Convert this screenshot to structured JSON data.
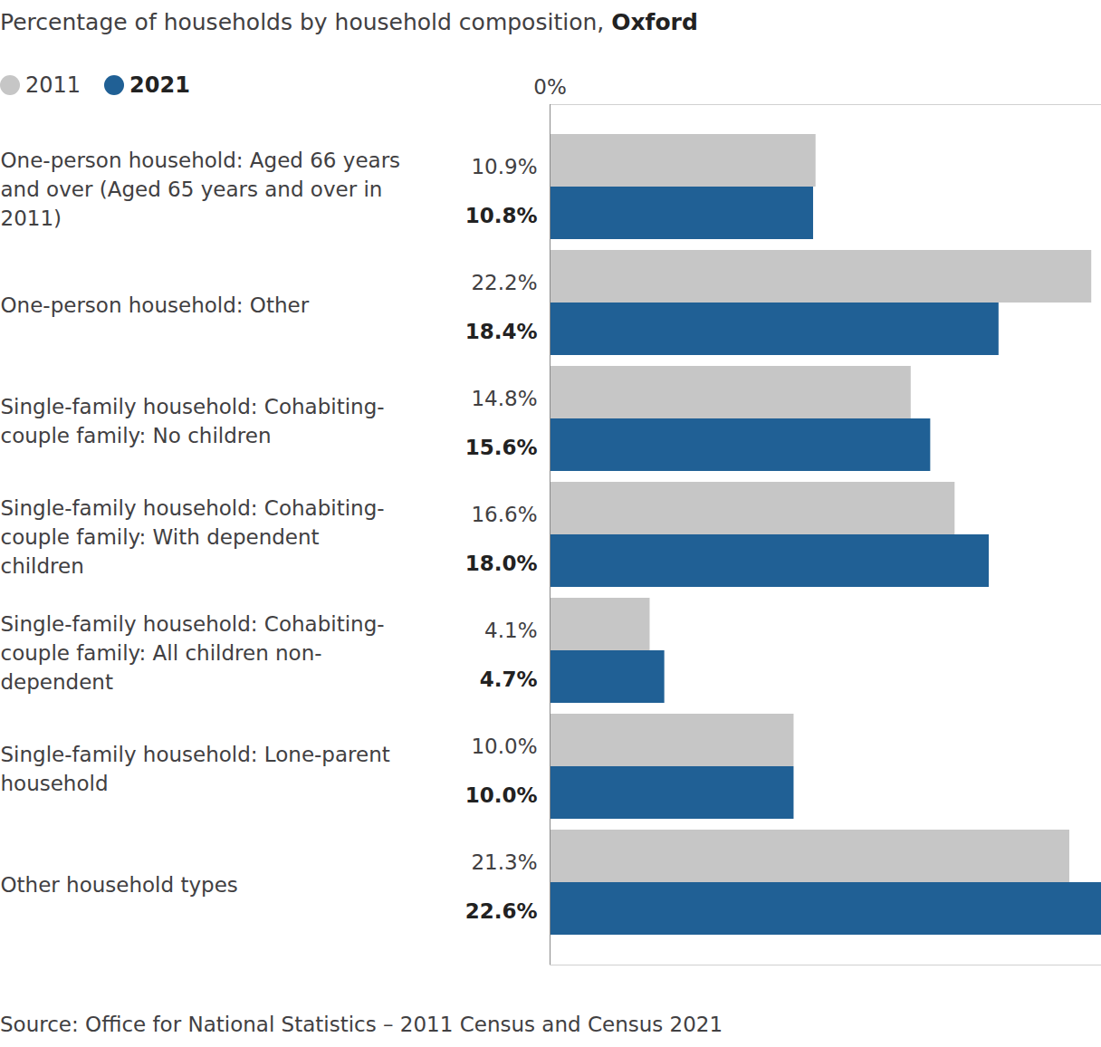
{
  "chart_data": {
    "type": "bar",
    "orientation": "horizontal",
    "title": "Percentage of households by household composition, Oxford",
    "caption": "Source: Office for National Statistics – 2011 Census and Census 2021",
    "categories": [
      "One-person household: Aged 66 years and over (Aged 65 years and over in 2011)",
      "One-person household: Other",
      "Single-family household: Cohabiting-couple family: No children",
      "Single-family household: Cohabiting-couple family: With dependent children",
      "Single-family household: Cohabiting-couple family: All children non-dependent",
      "Single-family household: Lone-parent household",
      "Other household types"
    ],
    "series": [
      {
        "name": "2011",
        "color": "#c6c6c6",
        "values": [
          10.9,
          22.2,
          14.8,
          16.6,
          4.1,
          10.0,
          21.3
        ],
        "value_labels": [
          "10.9%",
          "22.2%",
          "14.8%",
          "16.6%",
          "4.1%",
          "10.0%",
          "21.3%"
        ]
      },
      {
        "name": "2021",
        "color": "#206095",
        "values": [
          10.8,
          18.4,
          15.6,
          18.0,
          4.7,
          10.0,
          22.6
        ],
        "value_labels": [
          "10.8%",
          "18.4%",
          "15.6%",
          "18.0%",
          "4.7%",
          "10.0%",
          "22.6%"
        ]
      }
    ],
    "xlim": [
      0,
      22.6
    ],
    "xticks": [
      {
        "value": 0,
        "label": "0%"
      }
    ],
    "data_labels": true,
    "legend": "top-left",
    "grid": false
  }
}
